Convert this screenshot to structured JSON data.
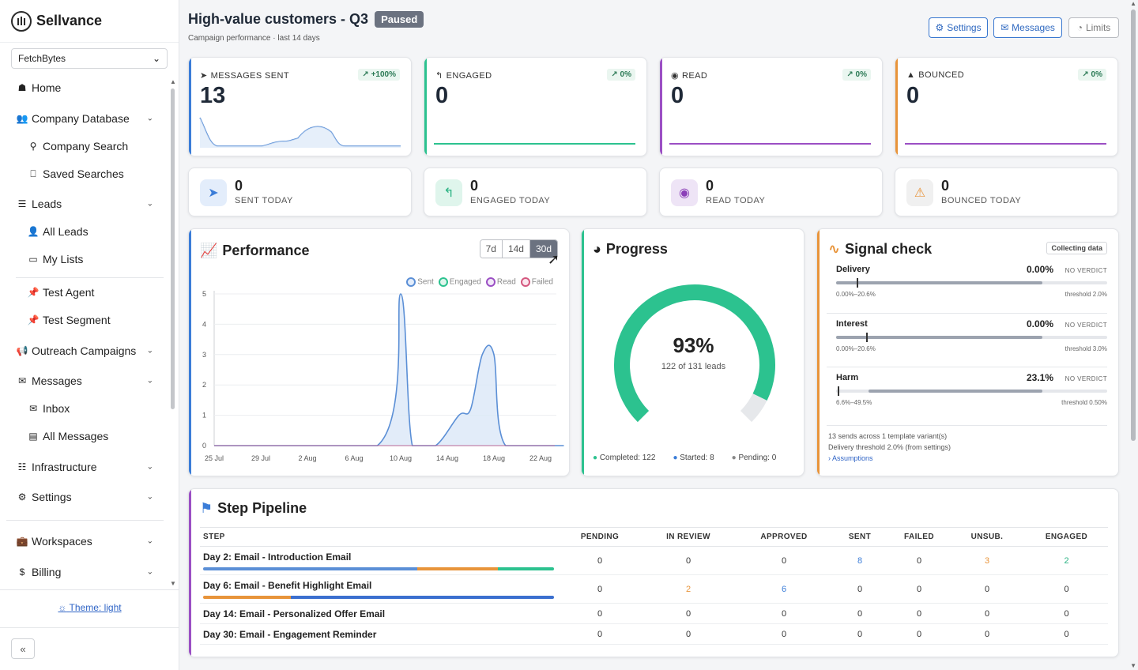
{
  "app": {
    "name": "Sellvance",
    "workspace": "FetchBytes",
    "theme_label": "Theme: light"
  },
  "nav": {
    "home": "Home",
    "company_database": "Company Database",
    "company_search": "Company Search",
    "saved_searches": "Saved Searches",
    "leads": "Leads",
    "all_leads": "All Leads",
    "my_lists": "My Lists",
    "test_agent": "Test Agent",
    "test_segment": "Test Segment",
    "outreach_campaigns": "Outreach Campaigns",
    "messages": "Messages",
    "inbox": "Inbox",
    "all_messages": "All Messages",
    "infrastructure": "Infrastructure",
    "settings": "Settings",
    "workspaces": "Workspaces",
    "billing": "Billing"
  },
  "header": {
    "title": "High-value customers - Q3",
    "status": "Paused",
    "subtitle": "Campaign performance · last 14 days",
    "settings_btn": "Settings",
    "messages_btn": "Messages",
    "limits_btn": "Limits"
  },
  "kpis": [
    {
      "label": "MESSAGES SENT",
      "value": "13",
      "delta": "↗ +100%",
      "color": "#3b7dd8"
    },
    {
      "label": "ENGAGED",
      "value": "0",
      "delta": "↗ 0%",
      "color": "#2cc28f"
    },
    {
      "label": "READ",
      "value": "0",
      "delta": "↗ 0%",
      "color": "#9b4fc4"
    },
    {
      "label": "BOUNCED",
      "value": "0",
      "delta": "↗ 0%",
      "color": "#e8943a"
    }
  ],
  "today": [
    {
      "value": "0",
      "label": "SENT TODAY"
    },
    {
      "value": "0",
      "label": "ENGAGED TODAY"
    },
    {
      "value": "0",
      "label": "READ TODAY"
    },
    {
      "value": "0",
      "label": "BOUNCED TODAY"
    }
  ],
  "performance": {
    "title": "Performance",
    "ranges": [
      "7d",
      "14d",
      "30d"
    ],
    "active_range": "30d"
  },
  "chart_data": {
    "type": "area",
    "x": [
      "25 Jul",
      "29 Jul",
      "2 Aug",
      "6 Aug",
      "10 Aug",
      "14 Aug",
      "18 Aug",
      "22 Aug"
    ],
    "ylim": [
      0,
      5
    ],
    "yticks": [
      "0",
      "1",
      "2",
      "3",
      "4",
      "5"
    ],
    "legend": [
      "Sent",
      "Engaged",
      "Read",
      "Failed"
    ],
    "series": [
      {
        "name": "Sent",
        "points": [
          [
            "25 Jul",
            0
          ],
          [
            "8 Aug",
            0
          ],
          [
            "10 Aug",
            5
          ],
          [
            "11 Aug",
            0
          ],
          [
            "13 Aug",
            0
          ],
          [
            "15 Aug",
            1
          ],
          [
            "16 Aug",
            1.2
          ],
          [
            "17 Aug",
            3
          ],
          [
            "18 Aug",
            3
          ],
          [
            "19 Aug",
            0
          ],
          [
            "24 Aug",
            0
          ]
        ]
      },
      {
        "name": "Engaged",
        "values": [
          0,
          0,
          0,
          0,
          0,
          0,
          0,
          0
        ]
      },
      {
        "name": "Read",
        "values": [
          0,
          0,
          0,
          0,
          0,
          0,
          0,
          0
        ]
      },
      {
        "name": "Failed",
        "values": [
          0,
          0,
          0,
          0,
          0,
          0,
          0,
          0
        ]
      }
    ]
  },
  "progress": {
    "title": "Progress",
    "percent_label": "93%",
    "percent": 0.93,
    "sub": "122 of 131 leads",
    "completed": "Completed: 122",
    "started": "Started: 8",
    "pending": "Pending: 0"
  },
  "signal": {
    "title": "Signal check",
    "badge": "Collecting data",
    "rows": [
      {
        "name": "Delivery",
        "value": "0.00%",
        "verdict": "NO VERDICT",
        "range": "0.00%–20.6%",
        "threshold": "threshold 2.0%"
      },
      {
        "name": "Interest",
        "value": "0.00%",
        "verdict": "NO VERDICT",
        "range": "0.00%–20.6%",
        "threshold": "threshold 3.0%"
      },
      {
        "name": "Harm",
        "value": "23.1%",
        "verdict": "NO VERDICT",
        "range": "6.6%–49.5%",
        "threshold": "threshold 0.50%"
      }
    ],
    "note1": "13 sends across 1 template variant(s)",
    "note2": "Delivery threshold 2.0% (from settings)",
    "assumptions": "Assumptions"
  },
  "pipeline": {
    "title": "Step Pipeline",
    "columns": [
      "STEP",
      "PENDING",
      "IN REVIEW",
      "APPROVED",
      "SENT",
      "FAILED",
      "UNSUB.",
      "ENGAGED"
    ],
    "rows": [
      {
        "step": "Day 2: Email - Introduction Email",
        "cells": [
          "0",
          "0",
          "0",
          "8",
          "0",
          "3",
          "2"
        ]
      },
      {
        "step": "Day 6: Email - Benefit Highlight Email",
        "cells": [
          "0",
          "2",
          "6",
          "0",
          "0",
          "0",
          "0"
        ]
      },
      {
        "step": "Day 14: Email - Personalized Offer Email",
        "cells": [
          "0",
          "0",
          "0",
          "0",
          "0",
          "0",
          "0"
        ]
      },
      {
        "step": "Day 30: Email - Engagement Reminder",
        "cells": [
          "0",
          "0",
          "0",
          "0",
          "0",
          "0",
          "0"
        ]
      }
    ]
  }
}
